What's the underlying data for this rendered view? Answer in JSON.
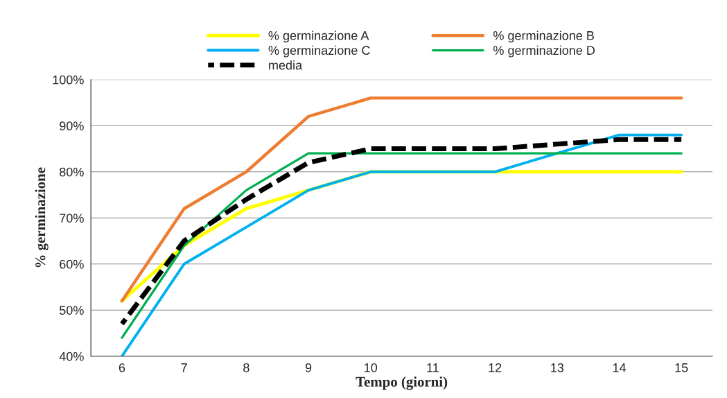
{
  "chart_data": {
    "type": "line",
    "xlabel": "Tempo (giorni)",
    "ylabel": "% germinazione",
    "categories": [
      "6",
      "7",
      "8",
      "9",
      "10",
      "11",
      "12",
      "13",
      "14",
      "15"
    ],
    "series": [
      {
        "name": "% germinazione A",
        "color": "#ffff00",
        "values": [
          52,
          64,
          72,
          76,
          80,
          80,
          80,
          80,
          80,
          80
        ]
      },
      {
        "name": "% germinazione B",
        "color": "#ed7d31",
        "values": [
          52,
          72,
          80,
          92,
          96,
          96,
          96,
          96,
          96,
          96
        ]
      },
      {
        "name": "% germinazione C",
        "color": "#00b0f0",
        "values": [
          40,
          60,
          68,
          76,
          80,
          80,
          80,
          84,
          88,
          88
        ]
      },
      {
        "name": "% germinazione D",
        "color": "#00b050",
        "values": [
          44,
          64,
          76,
          84,
          84,
          84,
          84,
          84,
          84,
          84
        ]
      },
      {
        "name": "media",
        "color": "#000000",
        "values": [
          47,
          65,
          74,
          82,
          85,
          85,
          85,
          86,
          87,
          87
        ],
        "line_style": "dashed"
      }
    ],
    "ylim": [
      40,
      100
    ],
    "yticks": [
      {
        "value": 40,
        "label": "40%"
      },
      {
        "value": 50,
        "label": "50%"
      },
      {
        "value": 60,
        "label": "60%"
      },
      {
        "value": 70,
        "label": "70%"
      },
      {
        "value": 80,
        "label": "80%"
      },
      {
        "value": 90,
        "label": "90%"
      },
      {
        "value": 100,
        "label": "100%"
      }
    ],
    "grid": "y",
    "legend": "top",
    "marker": "none"
  }
}
